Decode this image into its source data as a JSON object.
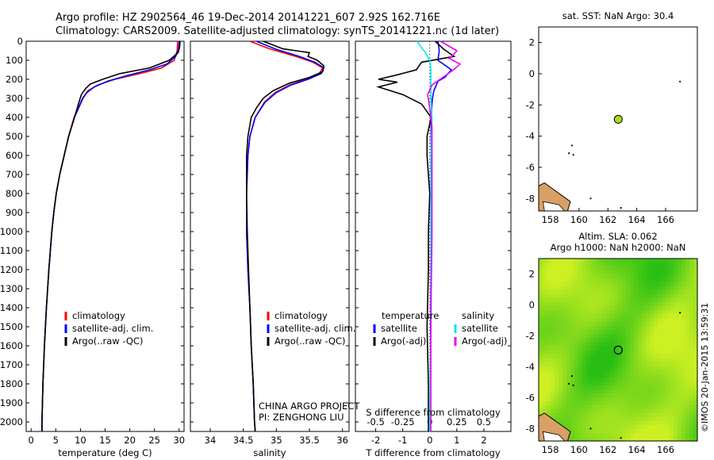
{
  "header": {
    "line1": "Argo profile: HZ 2902564_46 19-Dec-2014 20141221_607 2.92S 162.716E",
    "line2": "Climatology: CARS2009. Satellite-adjusted climatology: synTS_20141221.nc (1d later)"
  },
  "depth_ticks": [
    "0",
    "100",
    "200",
    "300",
    "400",
    "500",
    "600",
    "700",
    "800",
    "900",
    "1000",
    "1100",
    "1200",
    "1300",
    "1400",
    "1500",
    "1600",
    "1700",
    "1800",
    "1900",
    "2000"
  ],
  "colors": {
    "climatology": "#ff0000",
    "satellite": "#0000ff",
    "argo": "#000000",
    "cyan": "#00e5ee",
    "magenta": "#ee00ee",
    "map_green": "#33cc22",
    "map_yellow": "#ccee22",
    "coast": "#d9a066",
    "argo_marker": "#aadd22"
  },
  "chart_data": [
    {
      "type": "line",
      "id": "temperature",
      "xlabel": "temperature (deg C)",
      "xlim": [
        -1,
        31
      ],
      "ylim": [
        2050,
        0
      ],
      "xticks": [
        "0",
        "5",
        "10",
        "15",
        "20",
        "25",
        "30"
      ],
      "legend": [
        "climatology",
        "satellite-adj. clim.",
        "Argo(..raw -QC)"
      ],
      "series": [
        {
          "name": "climatology",
          "depth": [
            0,
            50,
            100,
            140,
            170,
            200,
            230,
            260,
            300,
            400,
            500,
            600,
            700,
            800,
            900,
            1000,
            1200,
            1400,
            1600,
            1800,
            2000,
            2050
          ],
          "values": [
            29.7,
            29.6,
            29.0,
            26.5,
            22.0,
            17.0,
            13.5,
            11.5,
            10.4,
            8.7,
            7.6,
            6.7,
            5.8,
            5.1,
            4.6,
            4.2,
            3.6,
            3.1,
            2.7,
            2.4,
            2.2,
            2.2
          ]
        },
        {
          "name": "satellite-adj. clim.",
          "depth": [
            0,
            40,
            80,
            120,
            150,
            180,
            210,
            240,
            270,
            300,
            400,
            500,
            600,
            700,
            800,
            900,
            1000,
            1200,
            1400,
            1600,
            1800,
            2000,
            2050
          ],
          "values": [
            30.0,
            29.9,
            29.3,
            27.5,
            24.0,
            19.5,
            15.5,
            12.8,
            11.3,
            10.5,
            8.8,
            7.6,
            6.7,
            5.8,
            5.1,
            4.6,
            4.2,
            3.6,
            3.1,
            2.7,
            2.4,
            2.2,
            2.2
          ]
        },
        {
          "name": "Argo(..raw -QC)",
          "depth": [
            0,
            30,
            60,
            100,
            140,
            170,
            200,
            225,
            250,
            280,
            320,
            400,
            500,
            600,
            700,
            800,
            900,
            1000,
            1200,
            1400,
            1600,
            1800,
            2000,
            2050
          ],
          "values": [
            30.2,
            30.1,
            29.8,
            28.0,
            24.0,
            18.0,
            14.5,
            12.0,
            11.0,
            10.2,
            9.7,
            8.8,
            7.6,
            6.7,
            5.8,
            5.1,
            4.6,
            4.2,
            3.6,
            3.1,
            2.7,
            2.4,
            2.2,
            2.2
          ]
        }
      ]
    },
    {
      "type": "line",
      "id": "salinity",
      "xlabel": "salinity",
      "xlim": [
        33.7,
        36.1
      ],
      "ylim": [
        2050,
        0
      ],
      "xticks": [
        "34",
        "34.5",
        "35",
        "35.5",
        "36"
      ],
      "legend": [
        "climatology",
        "satellite-adj. clim.",
        "Argo(..raw -QC)"
      ],
      "annotation1": "CHINA ARGO PROJECT",
      "annotation2": "PI: ZENGHONG LIU",
      "series": [
        {
          "name": "climatology",
          "depth": [
            0,
            40,
            80,
            110,
            140,
            170,
            200,
            230,
            270,
            320,
            400,
            500,
            600,
            800,
            1000,
            1200,
            1400,
            1600,
            1800,
            2000,
            2050
          ],
          "values": [
            34.6,
            34.9,
            35.3,
            35.55,
            35.7,
            35.65,
            35.45,
            35.2,
            34.98,
            34.82,
            34.68,
            34.6,
            34.57,
            34.55,
            34.55,
            34.57,
            34.6,
            34.62,
            34.65,
            34.67,
            34.68
          ]
        },
        {
          "name": "satellite-adj. clim.",
          "depth": [
            0,
            40,
            80,
            110,
            140,
            170,
            200,
            230,
            270,
            320,
            400,
            500,
            600,
            800,
            1000,
            1200,
            1400,
            1600,
            1800,
            2000,
            2050
          ],
          "values": [
            34.7,
            34.98,
            35.35,
            35.58,
            35.72,
            35.68,
            35.48,
            35.22,
            35.0,
            34.83,
            34.68,
            34.6,
            34.57,
            34.55,
            34.55,
            34.57,
            34.6,
            34.62,
            34.65,
            34.67,
            34.68
          ]
        },
        {
          "name": "Argo(..raw -QC)",
          "depth": [
            0,
            20,
            40,
            60,
            80,
            100,
            130,
            160,
            190,
            220,
            260,
            300,
            350,
            400,
            500,
            600,
            800,
            1000,
            1200,
            1400,
            1600,
            1800,
            2000,
            2050
          ],
          "values": [
            34.8,
            34.95,
            35.1,
            35.5,
            35.48,
            35.62,
            35.72,
            35.7,
            35.5,
            35.2,
            34.95,
            34.8,
            34.7,
            34.62,
            34.57,
            34.55,
            34.55,
            34.56,
            34.58,
            34.6,
            34.62,
            34.65,
            34.67,
            34.68
          ]
        }
      ]
    },
    {
      "type": "line",
      "id": "differences",
      "xlabel": "T difference from climatology",
      "xlabel_top": "S difference from climatology",
      "xlim_T": [
        -2.75,
        3.0
      ],
      "xticks_T": [
        "-2",
        "-1",
        "0",
        "1",
        "2"
      ],
      "xticks_S": [
        "-0.5",
        "-0.25",
        "0",
        "0.25",
        "0.5"
      ],
      "ylim": [
        2050,
        0
      ],
      "legend_temperature": {
        "title": "temperature",
        "items": [
          "satellite",
          "Argo(-adj)"
        ]
      },
      "legend_salinity": {
        "title": "salinity",
        "items": [
          "satellite",
          "Argo(-adj)"
        ]
      },
      "series": [
        {
          "name": "temperature satellite",
          "depth": [
            0,
            50,
            100,
            150,
            190,
            210,
            260,
            300,
            400,
            600,
            800,
            1000,
            1500,
            2000,
            2050
          ],
          "values": [
            0.3,
            0.35,
            0.3,
            0.8,
            0.55,
            0.3,
            0.15,
            0.1,
            0.05,
            0.05,
            0.05,
            0.05,
            0.03,
            0.02,
            0.02
          ]
        },
        {
          "name": "temperature Argo(-adj)",
          "depth": [
            0,
            40,
            80,
            110,
            150,
            180,
            200,
            215,
            240,
            280,
            330,
            400,
            500,
            600,
            700,
            800,
            1000,
            1200,
            1500,
            1800,
            2000,
            2050
          ],
          "values": [
            0.2,
            0.5,
            0.9,
            -0.3,
            -0.5,
            -1.3,
            -1.9,
            -1.2,
            -1.9,
            -1.0,
            -0.3,
            0.05,
            -0.1,
            -0.1,
            -0.05,
            0.0,
            -0.05,
            -0.05,
            -0.1,
            -0.05,
            -0.05,
            -0.05
          ]
        },
        {
          "name": "salinity satellite",
          "depth": [
            0,
            30,
            60,
            100,
            150,
            200,
            300,
            400,
            600,
            800,
            1000,
            1500,
            2000,
            2050
          ],
          "values": [
            -0.12,
            -0.08,
            -0.04,
            0.0,
            0.01,
            0.01,
            0.01,
            0.02,
            0.01,
            0.01,
            0.01,
            0.01,
            0.0,
            0.0
          ]
        },
        {
          "name": "salinity Argo(-adj)",
          "depth": [
            0,
            50,
            70,
            90,
            120,
            150,
            190,
            230,
            280,
            350,
            450,
            600,
            800,
            1000,
            1500,
            2000,
            2050
          ],
          "values": [
            0.1,
            0.25,
            0.22,
            0.18,
            0.28,
            0.22,
            0.12,
            0.02,
            -0.02,
            0.0,
            0.02,
            0.02,
            0.02,
            0.02,
            0.01,
            0.01,
            0.01
          ]
        }
      ]
    },
    {
      "type": "scatter",
      "id": "sst_map",
      "title": "sat. SST: NaN Argo: 30.4",
      "xlim": [
        157.2,
        168.2
      ],
      "ylim": [
        -8.8,
        3.0
      ],
      "xticks": [
        "158",
        "160",
        "162",
        "164",
        "166"
      ],
      "yticks": [
        "2",
        "0",
        "-2",
        "-4",
        "-6",
        "-8"
      ],
      "argo_position": {
        "lon": 162.716,
        "lat": -2.92
      }
    },
    {
      "type": "heatmap",
      "id": "sla_map",
      "title": "Altim. SLA: 0.062",
      "subtitle": "Argo h1000: NaN h2000: NaN",
      "xlim": [
        157.2,
        168.2
      ],
      "ylim": [
        -8.8,
        3.0
      ],
      "xticks": [
        "158",
        "160",
        "162",
        "164",
        "166"
      ],
      "yticks": [
        "2",
        "0",
        "-2",
        "-4",
        "-6",
        "-8"
      ],
      "argo_position": {
        "lon": 162.716,
        "lat": -2.92
      }
    }
  ],
  "footer": {
    "credit": "©IMOS 20-Jan-2015 13:59:31"
  }
}
